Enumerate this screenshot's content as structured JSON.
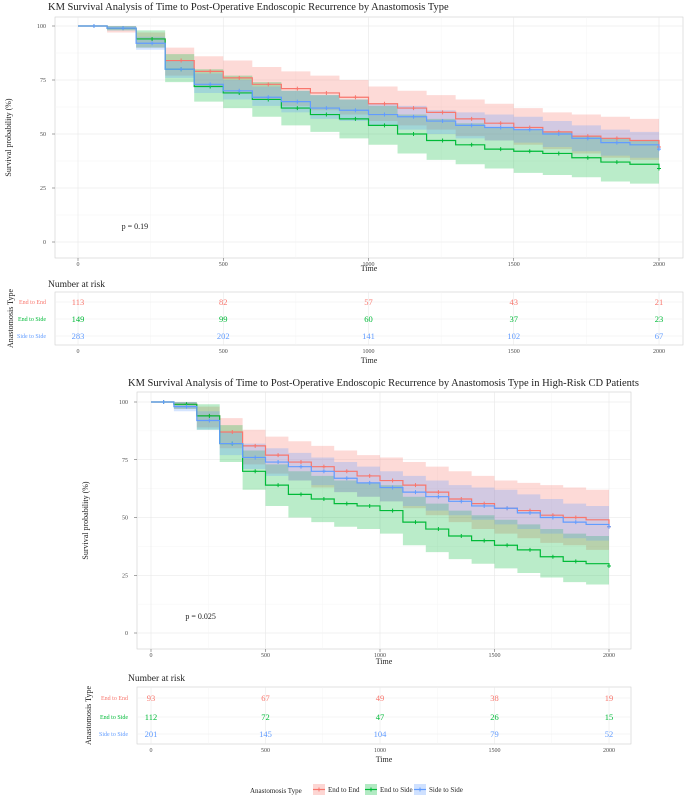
{
  "colors": {
    "End to End": "#F8766D",
    "End to Side": "#00BA38",
    "Side to Side": "#619CFF"
  },
  "legend": {
    "title": "Anastomosis Type",
    "items": [
      "End to End",
      "End to Side",
      "Side to Side"
    ]
  },
  "chart_data": [
    {
      "type": "line",
      "title": "KM Survival Analysis of Time to Post-Operative Endoscopic Recurrence by Anastomosis Type",
      "xlabel": "Time",
      "ylabel": "Survival probability (%)",
      "xlim": [
        0,
        2000
      ],
      "ylim": [
        0,
        100
      ],
      "xticks": [
        0,
        500,
        1000,
        1500,
        2000
      ],
      "yticks": [
        0,
        25,
        50,
        75,
        100
      ],
      "pvalue": "p = 0.19",
      "series": [
        {
          "name": "End to End",
          "x": [
            0,
            100,
            200,
            300,
            400,
            500,
            600,
            700,
            800,
            900,
            1000,
            1100,
            1200,
            1300,
            1400,
            1500,
            1600,
            1700,
            1800,
            1900,
            2000
          ],
          "y": [
            100,
            99,
            94,
            84,
            79,
            76,
            73,
            71,
            69,
            67,
            64,
            62,
            60,
            57,
            55,
            53,
            51,
            49,
            48,
            47,
            44
          ],
          "upper": [
            100,
            100,
            97,
            90,
            86,
            84,
            81,
            79,
            77,
            75,
            72,
            70,
            68,
            66,
            64,
            62,
            60,
            59,
            58,
            57,
            55
          ],
          "lower": [
            100,
            97,
            90,
            77,
            72,
            69,
            66,
            63,
            61,
            59,
            56,
            54,
            52,
            49,
            47,
            45,
            43,
            41,
            39,
            38,
            35
          ]
        },
        {
          "name": "End to Side",
          "x": [
            0,
            100,
            200,
            300,
            400,
            500,
            600,
            700,
            800,
            900,
            1000,
            1100,
            1200,
            1300,
            1400,
            1500,
            1600,
            1700,
            1800,
            1900,
            2000
          ],
          "y": [
            100,
            99,
            94,
            80,
            72,
            69,
            66,
            62,
            59,
            57,
            54,
            50,
            47,
            45,
            43,
            42,
            41,
            39,
            37,
            36,
            34
          ],
          "upper": [
            100,
            100,
            98,
            87,
            80,
            77,
            74,
            70,
            68,
            66,
            63,
            59,
            57,
            55,
            53,
            52,
            51,
            49,
            48,
            47,
            45
          ],
          "lower": [
            100,
            98,
            90,
            74,
            65,
            62,
            58,
            54,
            51,
            48,
            45,
            41,
            38,
            36,
            34,
            32,
            31,
            30,
            28,
            27,
            25
          ]
        },
        {
          "name": "Side to Side",
          "x": [
            0,
            100,
            200,
            300,
            400,
            500,
            600,
            700,
            800,
            900,
            1000,
            1100,
            1200,
            1300,
            1400,
            1500,
            1600,
            1700,
            1800,
            1900,
            2000
          ],
          "y": [
            100,
            99,
            92,
            80,
            73,
            70,
            67,
            65,
            62,
            61,
            59,
            58,
            56,
            54,
            53,
            52,
            50,
            48,
            46,
            45,
            43
          ],
          "upper": [
            100,
            100,
            95,
            84,
            78,
            75,
            72,
            70,
            68,
            66,
            64,
            63,
            61,
            60,
            59,
            58,
            56,
            54,
            52,
            51,
            50
          ],
          "lower": [
            100,
            98,
            89,
            76,
            69,
            66,
            63,
            60,
            57,
            56,
            54,
            52,
            50,
            48,
            47,
            46,
            44,
            42,
            40,
            39,
            37
          ]
        }
      ],
      "risk_table": {
        "title": "Number at risk",
        "axis_label": "Anastomosis Type",
        "x_label": "Time",
        "times": [
          0,
          500,
          1000,
          1500,
          2000
        ],
        "rows": [
          {
            "name": "End to End",
            "values": [
              "113",
              "82",
              "57",
              "43",
              "21"
            ]
          },
          {
            "name": "End to Side",
            "values": [
              "149",
              "99",
              "60",
              "37",
              "23"
            ]
          },
          {
            "name": "Side to Side",
            "values": [
              "283",
              "202",
              "141",
              "102",
              "67"
            ]
          }
        ]
      }
    },
    {
      "type": "line",
      "title": "KM Survival Analysis of Time to Post-Operative Endoscopic Recurrence by Anastomosis Type in High-Risk CD Patients",
      "xlabel": "Time",
      "ylabel": "Survival probability (%)",
      "xlim": [
        0,
        2000
      ],
      "ylim": [
        0,
        100
      ],
      "xticks": [
        0,
        500,
        1000,
        1500,
        2000
      ],
      "yticks": [
        0,
        25,
        50,
        75,
        100
      ],
      "pvalue": "p = 0.025",
      "series": [
        {
          "name": "End to End",
          "x": [
            0,
            100,
            200,
            300,
            400,
            500,
            600,
            700,
            800,
            900,
            1000,
            1100,
            1200,
            1300,
            1400,
            1500,
            1600,
            1700,
            1800,
            1900,
            2000
          ],
          "y": [
            100,
            99,
            94,
            87,
            81,
            77,
            74,
            72,
            70,
            68,
            66,
            64,
            61,
            58,
            56,
            54,
            53,
            51,
            50,
            49,
            46
          ],
          "upper": [
            100,
            100,
            98,
            93,
            88,
            85,
            83,
            81,
            79,
            77,
            76,
            74,
            72,
            70,
            68,
            66,
            65,
            64,
            63,
            62,
            60
          ],
          "lower": [
            100,
            97,
            89,
            80,
            73,
            69,
            66,
            63,
            61,
            59,
            57,
            54,
            51,
            48,
            45,
            43,
            41,
            39,
            38,
            36,
            33
          ]
        },
        {
          "name": "End to Side",
          "x": [
            0,
            100,
            200,
            300,
            400,
            500,
            600,
            700,
            800,
            900,
            1000,
            1100,
            1200,
            1300,
            1400,
            1500,
            1600,
            1700,
            1800,
            1900,
            2000
          ],
          "y": [
            100,
            99,
            94,
            82,
            70,
            64,
            60,
            58,
            56,
            55,
            53,
            48,
            45,
            42,
            40,
            38,
            36,
            33,
            31,
            30,
            29
          ],
          "upper": [
            100,
            100,
            99,
            90,
            79,
            73,
            70,
            68,
            66,
            65,
            64,
            59,
            56,
            53,
            51,
            49,
            47,
            45,
            43,
            42,
            41
          ],
          "lower": [
            100,
            97,
            88,
            74,
            62,
            55,
            50,
            48,
            46,
            45,
            43,
            38,
            35,
            32,
            30,
            28,
            26,
            24,
            22,
            21,
            20
          ]
        },
        {
          "name": "Side to Side",
          "x": [
            0,
            100,
            200,
            300,
            400,
            500,
            600,
            700,
            800,
            900,
            1000,
            1100,
            1200,
            1300,
            1400,
            1500,
            1600,
            1700,
            1800,
            1900,
            2000
          ],
          "y": [
            100,
            98,
            92,
            82,
            76,
            74,
            72,
            70,
            67,
            65,
            63,
            61,
            59,
            57,
            55,
            54,
            52,
            50,
            48,
            47,
            46
          ],
          "upper": [
            100,
            100,
            96,
            87,
            82,
            80,
            78,
            76,
            74,
            72,
            70,
            68,
            66,
            64,
            63,
            62,
            60,
            58,
            56,
            55,
            54
          ],
          "lower": [
            100,
            96,
            88,
            77,
            71,
            68,
            66,
            64,
            61,
            59,
            57,
            55,
            53,
            51,
            49,
            47,
            45,
            43,
            41,
            40,
            39
          ]
        }
      ],
      "risk_table": {
        "title": "Number at risk",
        "axis_label": "Anastomosis Type",
        "x_label": "Time",
        "times": [
          0,
          500,
          1000,
          1500,
          2000
        ],
        "rows": [
          {
            "name": "End to End",
            "values": [
              "93",
              "67",
              "49",
              "38",
              "19"
            ]
          },
          {
            "name": "End to Side",
            "values": [
              "112",
              "72",
              "47",
              "26",
              "15"
            ]
          },
          {
            "name": "Side to Side",
            "values": [
              "201",
              "145",
              "104",
              "79",
              "52"
            ]
          }
        ]
      }
    }
  ]
}
